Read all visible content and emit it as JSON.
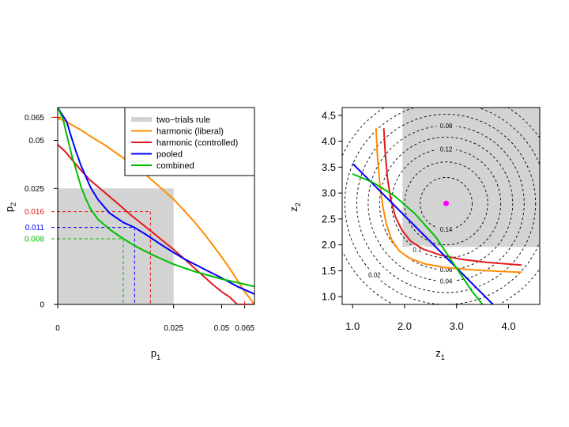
{
  "chart_data": [
    {
      "type": "line",
      "xlabel": "p",
      "xlabel_sub": "1",
      "ylabel": "p",
      "ylabel_sub": "2",
      "scale": "square-root",
      "xlim": [
        0,
        0.072
      ],
      "ylim": [
        0,
        0.072
      ],
      "x_ticks": [
        {
          "value": 0,
          "label": "0"
        },
        {
          "value": 0.025,
          "label": "0.025"
        },
        {
          "value": 0.05,
          "label": "0.05"
        },
        {
          "value": 0.065,
          "label": "0.065"
        }
      ],
      "y_ticks": [
        {
          "value": 0,
          "label": "0"
        },
        {
          "value": 0.025,
          "label": "0.025"
        },
        {
          "value": 0.05,
          "label": "0.05"
        },
        {
          "value": 0.065,
          "label": "0.065"
        }
      ],
      "legend": {
        "position": "top-right",
        "entries": [
          {
            "label": "two−trials rule",
            "color": "#d3d3d3"
          },
          {
            "label": "harmonic (liberal)",
            "color": "#ff8c00"
          },
          {
            "label": "harmonic (controlled)",
            "color": "#e31a1c"
          },
          {
            "label": "pooled",
            "color": "#0000ff"
          },
          {
            "label": "combined",
            "color": "#00c000"
          }
        ]
      },
      "region": {
        "name": "two−trials rule",
        "p1_max": 0.025,
        "p2_max": 0.025,
        "color": "#d3d3d3"
      },
      "series": [
        {
          "name": "harmonic (liberal)",
          "color": "#ff8c00",
          "x": [
            0.0,
            0.0001,
            0.0005,
            0.001,
            0.002,
            0.004,
            0.007,
            0.01,
            0.015,
            0.02,
            0.025,
            0.03,
            0.035,
            0.04,
            0.045,
            0.05,
            0.055,
            0.06,
            0.065,
            0.068,
            0.072
          ],
          "y": [
            0.0645,
            0.0625,
            0.059,
            0.0565,
            0.0525,
            0.0475,
            0.0415,
            0.037,
            0.0305,
            0.025,
            0.0205,
            0.0162,
            0.0125,
            0.0092,
            0.0064,
            0.0042,
            0.0024,
            0.0011,
            0.0003,
            0.0001,
            0.0
          ]
        },
        {
          "name": "harmonic (controlled)",
          "color": "#e31a1c",
          "x": [
            0.0,
            0.0001,
            0.0005,
            0.001,
            0.002,
            0.004,
            0.007,
            0.01,
            0.013,
            0.016,
            0.02,
            0.025,
            0.03,
            0.035,
            0.04,
            0.045,
            0.05,
            0.055,
            0.06,
            0.065,
            0.072
          ],
          "y": [
            0.0475,
            0.0435,
            0.0375,
            0.0335,
            0.0285,
            0.0235,
            0.0185,
            0.0148,
            0.0122,
            0.0101,
            0.0078,
            0.0056,
            0.0038,
            0.0024,
            0.0014,
            0.0007,
            0.0003,
            0.0001,
            0.0,
            0.0,
            0.0
          ]
        },
        {
          "name": "pooled",
          "color": "#0000ff",
          "x": [
            0.0,
            0.00015,
            0.0003,
            0.0006,
            0.001,
            0.002,
            0.003,
            0.005,
            0.008,
            0.011,
            0.015,
            0.02,
            0.025,
            0.03,
            0.04,
            0.05,
            0.06,
            0.072
          ],
          "y": [
            0.072,
            0.062,
            0.054,
            0.044,
            0.036,
            0.0255,
            0.0205,
            0.0155,
            0.0125,
            0.011,
            0.0088,
            0.0066,
            0.005,
            0.0038,
            0.0023,
            0.0013,
            0.0006,
            0.0002
          ]
        },
        {
          "name": "combined",
          "color": "#00c000",
          "x": [
            0.0,
            5e-05,
            0.0001,
            0.0002,
            0.0004,
            0.0007,
            0.001,
            0.0015,
            0.002,
            0.003,
            0.005,
            0.008,
            0.012,
            0.017,
            0.025,
            0.035,
            0.05,
            0.072
          ],
          "y": [
            0.072,
            0.064,
            0.058,
            0.05,
            0.04,
            0.032,
            0.026,
            0.0205,
            0.017,
            0.0135,
            0.0105,
            0.008,
            0.006,
            0.0045,
            0.003,
            0.002,
            0.0012,
            0.0006
          ]
        }
      ],
      "threshold_markers": [
        {
          "label": "0.016",
          "color": "#e31a1c",
          "p1": 0.016,
          "p2": 0.016
        },
        {
          "label": "0.011",
          "color": "#0000ff",
          "p1": 0.011,
          "p2": 0.011
        },
        {
          "label": "0.008",
          "color": "#00c000",
          "p1": 0.008,
          "p2": 0.008
        }
      ]
    },
    {
      "type": "line",
      "xlabel": "z",
      "xlabel_sub": "1",
      "ylabel": "z",
      "ylabel_sub": "2",
      "xlim": [
        0.8,
        4.6
      ],
      "ylim": [
        0.85,
        4.65
      ],
      "x_ticks": [
        {
          "value": 1.0,
          "label": "1.0"
        },
        {
          "value": 2.0,
          "label": "2.0"
        },
        {
          "value": 3.0,
          "label": "3.0"
        },
        {
          "value": 4.0,
          "label": "4.0"
        }
      ],
      "y_ticks": [
        {
          "value": 1.0,
          "label": "1.0"
        },
        {
          "value": 1.5,
          "label": "1.5"
        },
        {
          "value": 2.0,
          "label": "2.0"
        },
        {
          "value": 2.5,
          "label": "2.5"
        },
        {
          "value": 3.0,
          "label": "3.0"
        },
        {
          "value": 3.5,
          "label": "3.5"
        },
        {
          "value": 4.0,
          "label": "4.0"
        },
        {
          "value": 4.5,
          "label": "4.5"
        }
      ],
      "region": {
        "z1_min": 1.96,
        "z2_min": 1.96,
        "color": "#d3d3d3"
      },
      "center_point": {
        "z1": 2.8,
        "z2": 2.8,
        "color": "#ff00ff"
      },
      "contours": {
        "center": [
          2.8,
          2.8
        ],
        "radii": [
          0.5,
          0.8,
          1.05,
          1.28,
          1.5,
          1.72,
          1.95,
          2.2
        ],
        "labels": [
          {
            "text": "0.14",
            "radius": 0.5,
            "angle_deg": -90
          },
          {
            "text": "0.12",
            "radius": 1.05,
            "angle_deg": 90
          },
          {
            "text": "0.08",
            "radius": 1.5,
            "angle_deg": 90
          },
          {
            "text": "0.1",
            "radius": 1.05,
            "angle_deg": -122
          },
          {
            "text": "0.06",
            "radius": 1.28,
            "angle_deg": -90
          },
          {
            "text": "0.04",
            "radius": 1.5,
            "angle_deg": -90
          },
          {
            "text": "0.02",
            "radius": 1.95,
            "angle_deg": -135
          }
        ]
      },
      "series": [
        {
          "name": "harmonic (liberal)",
          "color": "#ff8c00",
          "x": [
            1.45,
            1.48,
            1.52,
            1.58,
            1.65,
            1.75,
            1.9,
            2.1,
            2.4,
            2.8,
            3.3,
            3.8,
            4.25
          ],
          "y": [
            4.25,
            3.7,
            3.2,
            2.75,
            2.4,
            2.1,
            1.88,
            1.74,
            1.63,
            1.56,
            1.52,
            1.49,
            1.47
          ]
        },
        {
          "name": "harmonic (controlled)",
          "color": "#e31a1c",
          "x": [
            1.6,
            1.63,
            1.67,
            1.73,
            1.82,
            1.95,
            2.12,
            2.35,
            2.7,
            3.1,
            3.6,
            4.25
          ],
          "y": [
            4.25,
            3.75,
            3.3,
            2.9,
            2.55,
            2.28,
            2.07,
            1.92,
            1.8,
            1.72,
            1.66,
            1.61
          ]
        },
        {
          "name": "pooled",
          "color": "#0000ff",
          "x": [
            1.0,
            3.7
          ],
          "y": [
            3.57,
            0.85
          ]
        },
        {
          "name": "combined",
          "color": "#00c000",
          "x": [
            1.0,
            1.4,
            1.8,
            2.2,
            2.6,
            3.0,
            3.3,
            3.5
          ],
          "y": [
            3.37,
            3.2,
            2.95,
            2.6,
            2.15,
            1.55,
            1.1,
            0.85
          ]
        }
      ]
    }
  ]
}
